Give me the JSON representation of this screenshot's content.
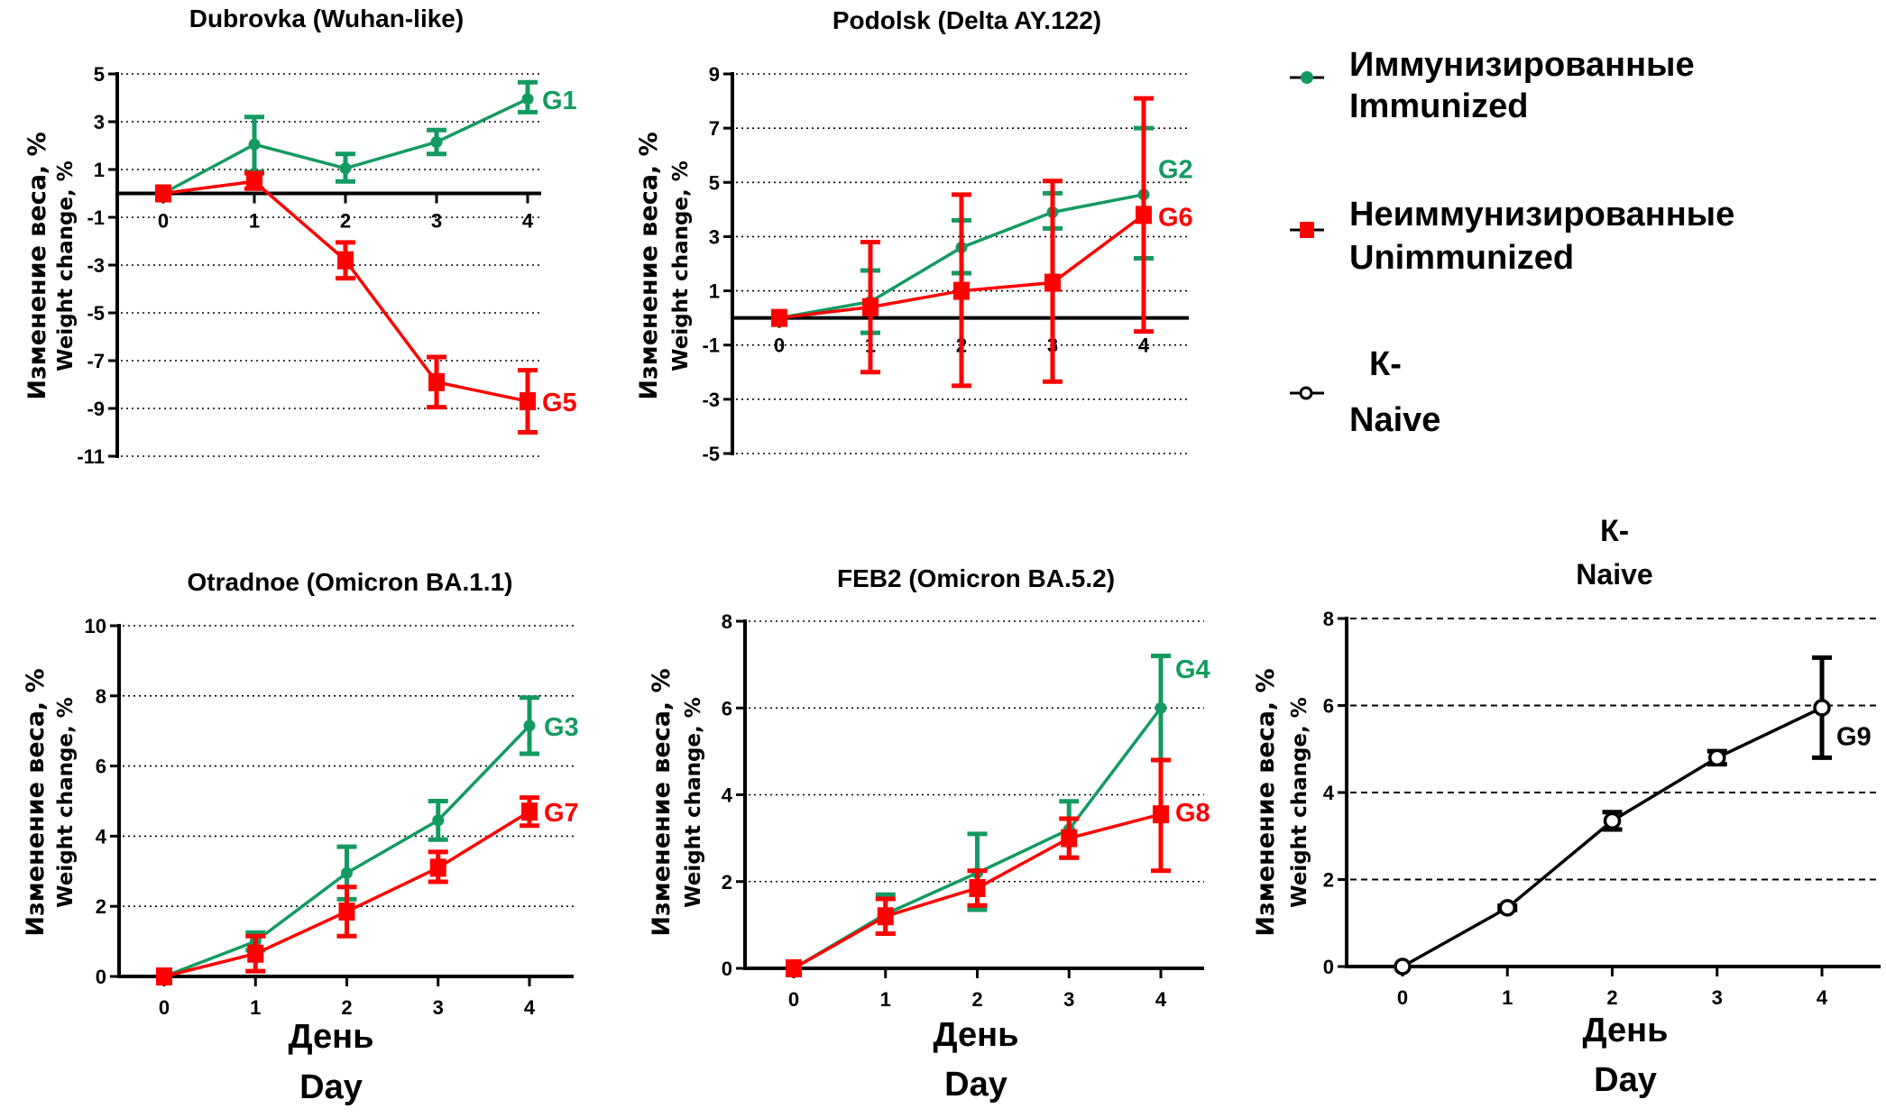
{
  "colors": {
    "immunized": "#139a62",
    "unimmunized": "#ff0000",
    "naive": "#000000",
    "axis": "#000000"
  },
  "legend": {
    "items": [
      {
        "key": "immunized",
        "label_ru": "Иммунизированные",
        "label_en": "Immunized",
        "marker": "circle-filled"
      },
      {
        "key": "unimmunized",
        "label_ru": "Неиммунизированные",
        "label_en": "Unimmunized",
        "marker": "square-filled"
      },
      {
        "key": "naive",
        "label_ru": "К-",
        "label_en": "Naive",
        "marker": "circle-open"
      }
    ]
  },
  "axis_labels": {
    "y_ru": "Изменение веса, %",
    "y_en": "Weight change, %",
    "x_ru": "День",
    "x_en": "Day"
  },
  "chart_data": [
    {
      "id": "dubrovka",
      "type": "line",
      "title": "Dubrovka (Wuhan-like)",
      "xlabel": "",
      "ylabel": "Изменение веса, % / Weight change, %",
      "x": [
        0,
        1,
        2,
        3,
        4
      ],
      "ylim": [
        -11,
        5
      ],
      "yticks": [
        5,
        3,
        1,
        -1,
        -3,
        -5,
        -7,
        -9,
        -11
      ],
      "x_axis_at": 0,
      "grid": "dotted-horizontal",
      "series": [
        {
          "name": "G1",
          "group": "immunized",
          "values": [
            0,
            2.05,
            1.05,
            2.15,
            3.95
          ],
          "err_low": [
            0,
            0.9,
            0.5,
            1.65,
            3.4
          ],
          "err_high": [
            0,
            3.2,
            1.65,
            2.65,
            4.65
          ]
        },
        {
          "name": "G5",
          "group": "unimmunized",
          "values": [
            0,
            0.5,
            -2.8,
            -7.9,
            -8.7
          ],
          "err_low": [
            0,
            0.2,
            -3.55,
            -8.95,
            -10.0
          ],
          "err_high": [
            0,
            0.85,
            -2.05,
            -6.85,
            -7.4
          ]
        }
      ]
    },
    {
      "id": "podolsk",
      "type": "line",
      "title": "Podolsk (Delta AY.122)",
      "xlabel": "",
      "ylabel": "Изменение веса, % / Weight change, %",
      "x": [
        0,
        1,
        2,
        3,
        4
      ],
      "ylim": [
        -5,
        9
      ],
      "yticks": [
        9,
        7,
        5,
        3,
        1,
        -1,
        -3,
        -5
      ],
      "x_axis_at": 0,
      "grid": "dotted-horizontal",
      "series": [
        {
          "name": "G2",
          "group": "immunized",
          "values": [
            0,
            0.6,
            2.6,
            3.9,
            4.55
          ],
          "err_low": [
            0,
            -0.55,
            1.65,
            3.3,
            2.2
          ],
          "err_high": [
            0,
            1.75,
            3.6,
            4.6,
            7.0
          ]
        },
        {
          "name": "G6",
          "group": "unimmunized",
          "values": [
            0,
            0.4,
            1.0,
            1.3,
            3.8
          ],
          "err_low": [
            0,
            -2.0,
            -2.5,
            -2.35,
            -0.5
          ],
          "err_high": [
            0,
            2.8,
            4.55,
            5.05,
            8.1
          ]
        }
      ]
    },
    {
      "id": "otradnoe",
      "type": "line",
      "title": "Otradnoe (Omicron BA.1.1)",
      "xlabel": "День / Day",
      "ylabel": "Изменение веса, % / Weight change, %",
      "x": [
        0,
        1,
        2,
        3,
        4
      ],
      "ylim": [
        0,
        10
      ],
      "yticks": [
        10,
        8,
        6,
        4,
        2,
        0
      ],
      "x_axis_at": 0,
      "grid": "dotted-horizontal",
      "series": [
        {
          "name": "G3",
          "group": "immunized",
          "values": [
            0,
            1.0,
            2.95,
            4.45,
            7.15
          ],
          "err_low": [
            0,
            0.75,
            2.2,
            3.9,
            6.35
          ],
          "err_high": [
            0,
            1.25,
            3.7,
            5.0,
            7.95
          ]
        },
        {
          "name": "G7",
          "group": "unimmunized",
          "values": [
            0,
            0.65,
            1.85,
            3.1,
            4.7
          ],
          "err_low": [
            0,
            0.15,
            1.15,
            2.7,
            4.3
          ],
          "err_high": [
            0,
            1.15,
            2.55,
            3.55,
            5.1
          ]
        }
      ]
    },
    {
      "id": "feb2",
      "type": "line",
      "title": "FEB2 (Omicron BA.5.2)",
      "xlabel": "День / Day",
      "ylabel": "Изменение веса, % / Weight change, %",
      "x": [
        0,
        1,
        2,
        3,
        4
      ],
      "ylim": [
        0,
        8
      ],
      "yticks": [
        8,
        6,
        4,
        2,
        0
      ],
      "x_axis_at": 0,
      "grid": "dotted-horizontal",
      "series": [
        {
          "name": "G4",
          "group": "immunized",
          "values": [
            0,
            1.25,
            2.2,
            3.2,
            6.0
          ],
          "err_low": [
            0,
            0.8,
            1.35,
            2.55,
            4.8
          ],
          "err_high": [
            0,
            1.7,
            3.1,
            3.85,
            7.2
          ]
        },
        {
          "name": "G8",
          "group": "unimmunized",
          "values": [
            0,
            1.2,
            1.85,
            3.0,
            3.55
          ],
          "err_low": [
            0,
            0.8,
            1.45,
            2.55,
            2.25
          ],
          "err_high": [
            0,
            1.6,
            2.25,
            3.45,
            4.8
          ]
        }
      ]
    },
    {
      "id": "naive",
      "type": "line",
      "title": "К-",
      "subtitle": "Naive",
      "xlabel": "День / Day",
      "ylabel": "Изменение веса, % / Weight change, %",
      "x": [
        0,
        1,
        2,
        3,
        4
      ],
      "ylim": [
        0,
        8
      ],
      "yticks": [
        8,
        6,
        4,
        2,
        0
      ],
      "x_axis_at": 0,
      "grid": "dashed-horizontal",
      "series": [
        {
          "name": "G9",
          "group": "naive",
          "values": [
            0,
            1.35,
            3.35,
            4.8,
            5.95
          ],
          "err_low": [
            0,
            1.3,
            3.15,
            4.65,
            4.8
          ],
          "err_high": [
            0,
            1.4,
            3.55,
            4.95,
            7.1
          ]
        }
      ]
    }
  ]
}
